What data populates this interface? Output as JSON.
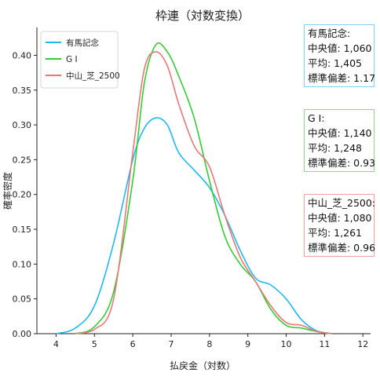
{
  "chart_data": {
    "type": "line",
    "title": "枠連（対数変換）",
    "xlabel": "払戻金（対数）",
    "ylabel": "確率密度",
    "xlim": [
      3.5,
      12.2
    ],
    "ylim": [
      0,
      0.44
    ],
    "xticks": [
      4,
      5,
      6,
      7,
      8,
      9,
      10,
      11,
      12
    ],
    "yticks": [
      0.0,
      0.05,
      0.1,
      0.15,
      0.2,
      0.25,
      0.3,
      0.35,
      0.4
    ],
    "ytick_labels": [
      "0.00",
      "0.05",
      "0.10",
      "0.15",
      "0.20",
      "0.25",
      "0.30",
      "0.35",
      "0.40"
    ],
    "grid": false,
    "legend_position": "top-left",
    "series": [
      {
        "name": "有馬記念",
        "color": "#1fb8f0",
        "x": [
          4.0,
          4.5,
          5.0,
          5.5,
          6.0,
          6.3,
          6.6,
          6.9,
          7.2,
          7.6,
          8.0,
          8.4,
          8.8,
          9.2,
          9.6,
          10.0,
          10.4,
          10.8,
          11.2
        ],
        "y": [
          0.0,
          0.008,
          0.04,
          0.13,
          0.25,
          0.295,
          0.31,
          0.3,
          0.26,
          0.235,
          0.21,
          0.17,
          0.12,
          0.08,
          0.07,
          0.05,
          0.02,
          0.004,
          0.0
        ]
      },
      {
        "name": "G I",
        "color": "#33cc33",
        "x": [
          4.5,
          5.0,
          5.5,
          6.0,
          6.3,
          6.6,
          6.9,
          7.2,
          7.6,
          8.0,
          8.4,
          8.8,
          9.2,
          9.6,
          10.0,
          10.4,
          10.8,
          11.2
        ],
        "y": [
          0.0,
          0.01,
          0.06,
          0.22,
          0.36,
          0.415,
          0.405,
          0.37,
          0.31,
          0.22,
          0.14,
          0.1,
          0.075,
          0.035,
          0.012,
          0.008,
          0.003,
          0.0
        ]
      },
      {
        "name": "中山_芝_2500",
        "color": "#e87878",
        "x": [
          4.5,
          5.0,
          5.5,
          6.0,
          6.3,
          6.6,
          6.9,
          7.2,
          7.6,
          8.0,
          8.4,
          8.8,
          9.2,
          9.6,
          10.0,
          10.4,
          10.8,
          11.2
        ],
        "y": [
          0.0,
          0.006,
          0.05,
          0.26,
          0.38,
          0.405,
          0.385,
          0.33,
          0.27,
          0.24,
          0.17,
          0.11,
          0.075,
          0.04,
          0.016,
          0.012,
          0.003,
          0.0
        ]
      }
    ],
    "annotations": [
      {
        "title": "有馬記念:",
        "median": "中央値: 1,060",
        "mean": "平均: 1,405",
        "std": "標準偏差: 1.17",
        "border": "#7fd3f0"
      },
      {
        "title": "G I:",
        "median": "中央値: 1,140",
        "mean": "平均: 1,248",
        "std": "標準偏差: 0.93",
        "border": "#88dd88"
      },
      {
        "title": "中山_芝_2500:",
        "median": "中央値: 1,080",
        "mean": "平均: 1,261",
        "std": "標準偏差: 0.96",
        "border": "#f0a0a0"
      }
    ]
  }
}
